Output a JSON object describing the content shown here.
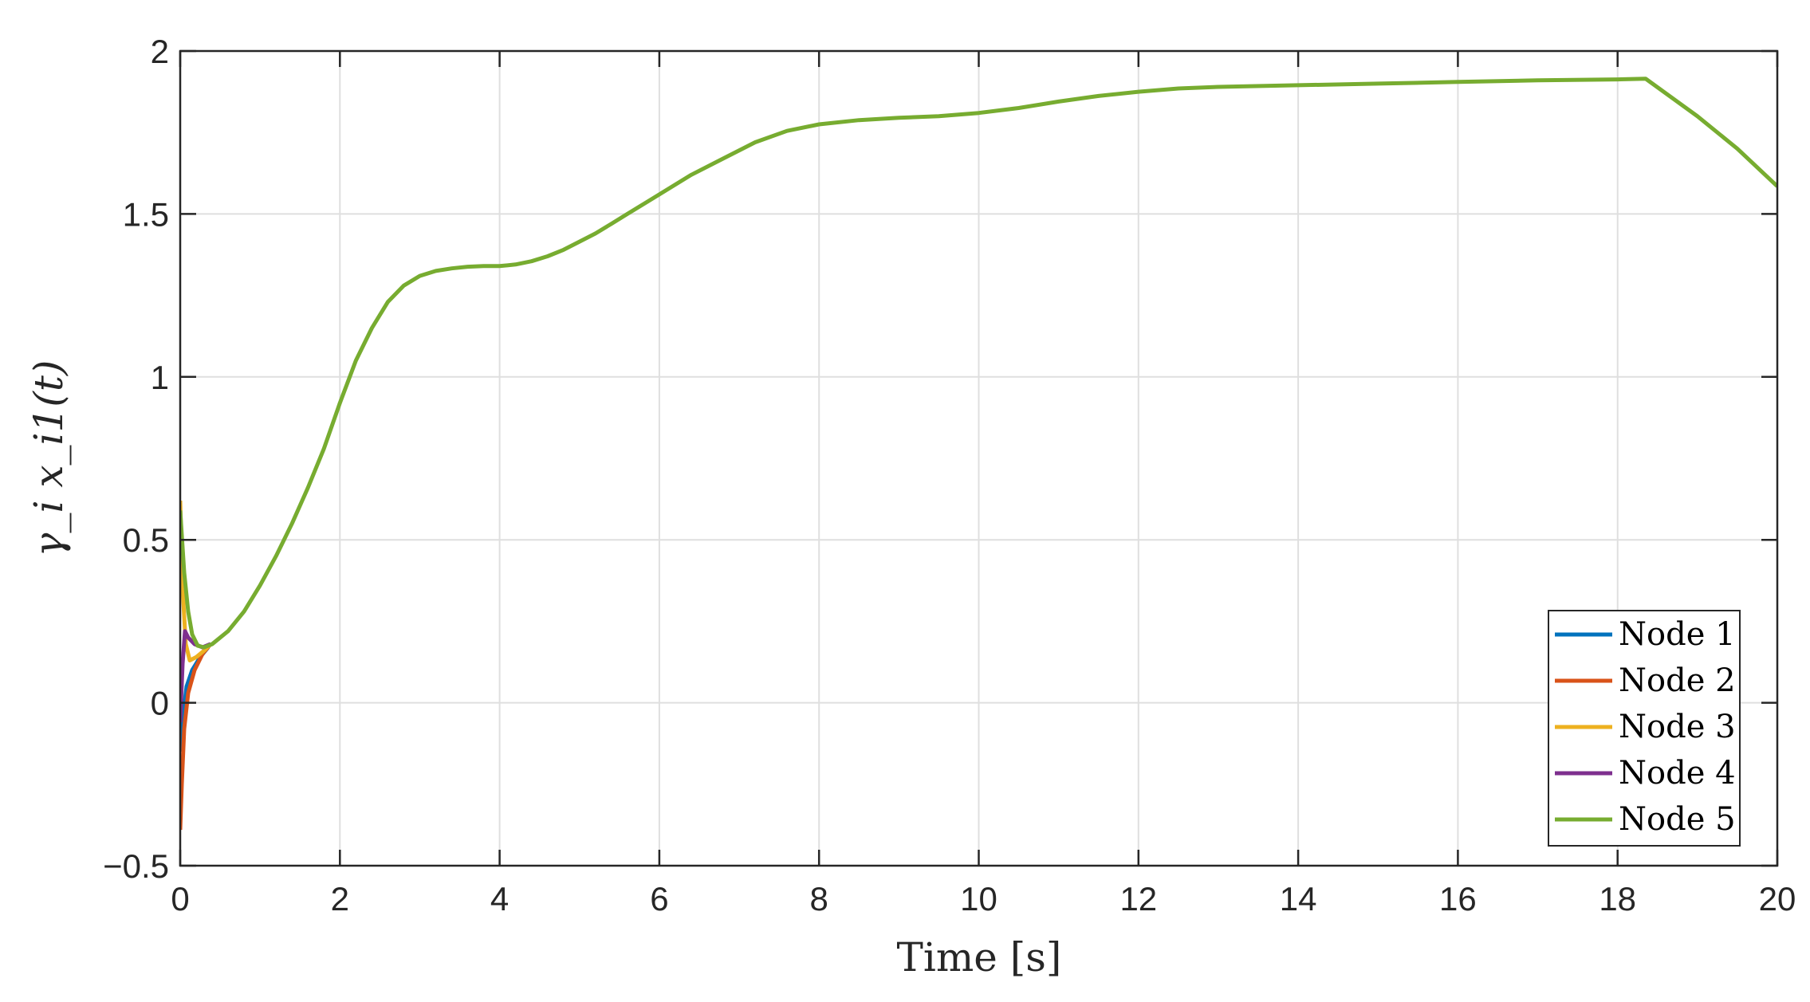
{
  "chart_data": {
    "type": "line",
    "title": "",
    "xlabel": "Time [s]",
    "ylabel": "γ_i x_i1(t)",
    "xlim": [
      0,
      20
    ],
    "ylim": [
      -0.5,
      2
    ],
    "x_ticks": [
      0,
      2,
      4,
      6,
      8,
      10,
      12,
      14,
      16,
      18,
      20
    ],
    "x_tick_labels": [
      "0",
      "2",
      "4",
      "6",
      "8",
      "10",
      "12",
      "14",
      "16",
      "18",
      "20"
    ],
    "y_ticks": [
      -0.5,
      0,
      0.5,
      1,
      1.5,
      2
    ],
    "y_tick_labels": [
      "−0.5",
      "0",
      "0.5",
      "1",
      "1.5",
      "2"
    ],
    "grid": true,
    "legend_position": "bottom-right",
    "series": [
      {
        "name": "Node 1",
        "color": "#0072BD",
        "points": [
          [
            0,
            -0.15
          ],
          [
            0.03,
            -0.05
          ],
          [
            0.08,
            0.05
          ],
          [
            0.15,
            0.1
          ],
          [
            0.25,
            0.14
          ],
          [
            0.35,
            0.17
          ]
        ]
      },
      {
        "name": "Node 2",
        "color": "#D95319",
        "points": [
          [
            0,
            -0.39
          ],
          [
            0.02,
            -0.25
          ],
          [
            0.05,
            -0.08
          ],
          [
            0.1,
            0.03
          ],
          [
            0.18,
            0.1
          ],
          [
            0.28,
            0.15
          ],
          [
            0.38,
            0.18
          ]
        ]
      },
      {
        "name": "Node 3",
        "color": "#EDB120",
        "points": [
          [
            0,
            0.62
          ],
          [
            0.03,
            0.35
          ],
          [
            0.07,
            0.18
          ],
          [
            0.12,
            0.13
          ],
          [
            0.2,
            0.14
          ],
          [
            0.3,
            0.16
          ],
          [
            0.38,
            0.18
          ]
        ]
      },
      {
        "name": "Node 4",
        "color": "#7E2F8E",
        "points": [
          [
            0,
            -0.06
          ],
          [
            0.03,
            0.12
          ],
          [
            0.06,
            0.22
          ],
          [
            0.1,
            0.2
          ],
          [
            0.18,
            0.18
          ],
          [
            0.28,
            0.17
          ],
          [
            0.38,
            0.18
          ]
        ]
      },
      {
        "name": "Node 5",
        "color": "#77AC30",
        "points": [
          [
            0,
            0.59
          ],
          [
            0.05,
            0.4
          ],
          [
            0.1,
            0.28
          ],
          [
            0.15,
            0.21
          ],
          [
            0.22,
            0.175
          ],
          [
            0.3,
            0.17
          ],
          [
            0.4,
            0.18
          ],
          [
            0.6,
            0.22
          ],
          [
            0.8,
            0.28
          ],
          [
            1.0,
            0.36
          ],
          [
            1.2,
            0.45
          ],
          [
            1.4,
            0.55
          ],
          [
            1.6,
            0.66
          ],
          [
            1.8,
            0.78
          ],
          [
            2.0,
            0.92
          ],
          [
            2.2,
            1.05
          ],
          [
            2.4,
            1.15
          ],
          [
            2.6,
            1.23
          ],
          [
            2.8,
            1.28
          ],
          [
            3.0,
            1.31
          ],
          [
            3.2,
            1.325
          ],
          [
            3.4,
            1.333
          ],
          [
            3.6,
            1.338
          ],
          [
            3.8,
            1.34
          ],
          [
            4.0,
            1.34
          ],
          [
            4.2,
            1.345
          ],
          [
            4.4,
            1.355
          ],
          [
            4.6,
            1.37
          ],
          [
            4.8,
            1.39
          ],
          [
            5.0,
            1.415
          ],
          [
            5.2,
            1.44
          ],
          [
            5.4,
            1.47
          ],
          [
            5.6,
            1.5
          ],
          [
            5.8,
            1.53
          ],
          [
            6.0,
            1.56
          ],
          [
            6.4,
            1.62
          ],
          [
            6.8,
            1.67
          ],
          [
            7.2,
            1.72
          ],
          [
            7.6,
            1.755
          ],
          [
            8.0,
            1.775
          ],
          [
            8.5,
            1.788
          ],
          [
            9.0,
            1.795
          ],
          [
            9.5,
            1.8
          ],
          [
            10.0,
            1.81
          ],
          [
            10.5,
            1.825
          ],
          [
            11.0,
            1.845
          ],
          [
            11.5,
            1.862
          ],
          [
            12.0,
            1.875
          ],
          [
            12.5,
            1.885
          ],
          [
            13.0,
            1.89
          ],
          [
            14.0,
            1.895
          ],
          [
            15.0,
            1.9
          ],
          [
            16.0,
            1.905
          ],
          [
            17.0,
            1.91
          ],
          [
            18.0,
            1.913
          ],
          [
            18.35,
            1.915
          ],
          [
            19.0,
            1.8
          ],
          [
            19.5,
            1.7
          ],
          [
            20.0,
            1.585
          ]
        ]
      }
    ]
  }
}
